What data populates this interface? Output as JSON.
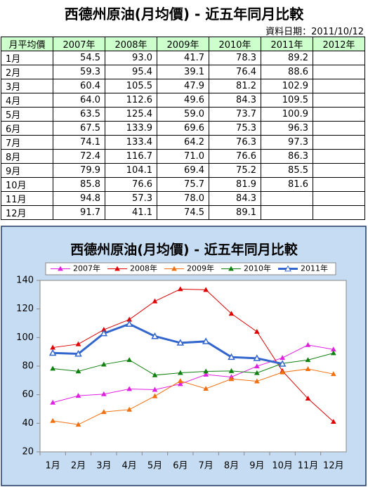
{
  "header": {
    "title": "西德州原油(月均價) - 近五年同月比較",
    "date": "資料日期：2011/10/12"
  },
  "table": {
    "header": [
      "月平均價",
      "2007年",
      "2008年",
      "2009年",
      "2010年",
      "2011年",
      "2012年"
    ]
  },
  "chart_data": {
    "type": "line",
    "title": "西德州原油(月均價) - 近五年同月比較",
    "categories": [
      "1月",
      "2月",
      "3月",
      "4月",
      "5月",
      "6月",
      "7月",
      "8月",
      "9月",
      "10月",
      "11月",
      "12月"
    ],
    "ylim": [
      20,
      140
    ],
    "yticks": [
      20,
      40,
      60,
      80,
      100,
      120,
      140
    ],
    "grid": false,
    "series": [
      {
        "name": "2007年",
        "color": "#e020e0",
        "values": [
          54.5,
          59.3,
          60.4,
          64.0,
          63.5,
          67.5,
          74.1,
          72.4,
          79.9,
          85.8,
          94.8,
          91.7
        ],
        "value_labels": [
          "54.5",
          "59.3",
          "60.4",
          "64.0",
          "63.5",
          "67.5",
          "74.1",
          "72.4",
          "79.9",
          "85.8",
          "94.8",
          "91.7"
        ]
      },
      {
        "name": "2008年",
        "color": "#e00000",
        "values": [
          93.0,
          95.4,
          105.5,
          112.6,
          125.4,
          133.9,
          133.4,
          116.7,
          104.1,
          76.6,
          57.3,
          41.1
        ],
        "value_labels": [
          "93.0",
          "95.4",
          "105.5",
          "112.6",
          "125.4",
          "133.9",
          "133.4",
          "116.7",
          "104.1",
          "76.6",
          "57.3",
          "41.1"
        ]
      },
      {
        "name": "2009年",
        "color": "#f07010",
        "values": [
          41.7,
          39.1,
          47.9,
          49.6,
          59.0,
          69.6,
          64.2,
          71.0,
          69.4,
          75.7,
          78.0,
          74.5
        ],
        "value_labels": [
          "41.7",
          "39.1",
          "47.9",
          "49.6",
          "59.0",
          "69.6",
          "64.2",
          "71.0",
          "69.4",
          "75.7",
          "78.0",
          "74.5"
        ]
      },
      {
        "name": "2010年",
        "color": "#108010",
        "values": [
          78.3,
          76.4,
          81.2,
          84.3,
          73.7,
          75.3,
          76.3,
          76.6,
          75.2,
          81.9,
          84.3,
          89.1
        ],
        "value_labels": [
          "78.3",
          "76.4",
          "81.2",
          "84.3",
          "73.7",
          "75.3",
          "76.3",
          "76.6",
          "75.2",
          "81.9",
          "84.3",
          "89.1"
        ]
      },
      {
        "name": "2011年",
        "color": "#3366cc",
        "values": [
          89.2,
          88.6,
          102.9,
          109.5,
          100.9,
          96.3,
          97.3,
          86.3,
          85.5,
          81.6,
          null,
          null
        ],
        "value_labels": [
          "89.2",
          "88.6",
          "102.9",
          "109.5",
          "100.9",
          "96.3",
          "97.3",
          "86.3",
          "85.5",
          "81.6",
          null,
          null
        ]
      }
    ]
  }
}
